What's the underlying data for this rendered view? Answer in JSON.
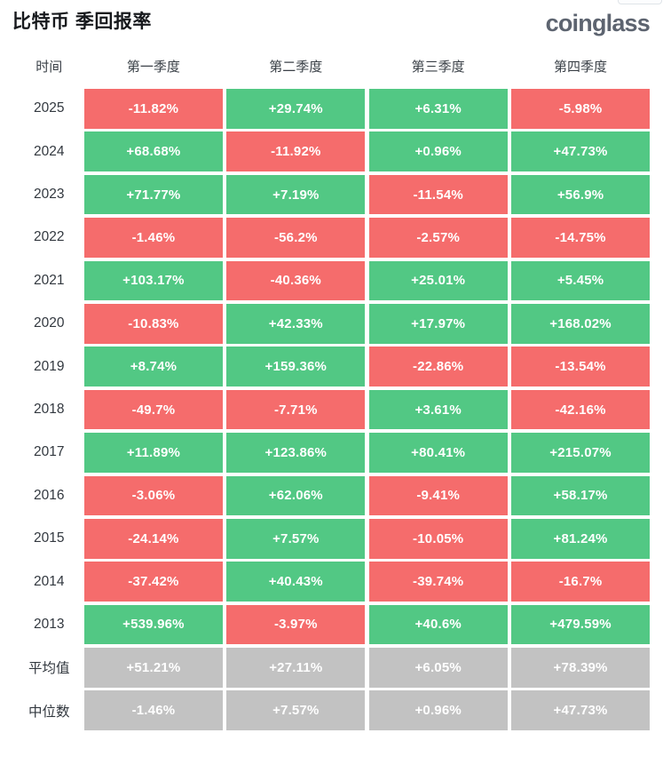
{
  "page": {
    "title": "比特币 季回报率",
    "logo": "coinglass"
  },
  "colors": {
    "positive": "#52c884",
    "negative": "#f56c6c",
    "neutral": "#c2c2c2"
  },
  "table": {
    "columns": [
      "时间",
      "第一季度",
      "第二季度",
      "第三季度",
      "第四季度"
    ],
    "rows": [
      {
        "label": "2025",
        "cells": [
          {
            "v": "-11.82%",
            "tone": "neg"
          },
          {
            "v": "+29.74%",
            "tone": "pos"
          },
          {
            "v": "+6.31%",
            "tone": "pos"
          },
          {
            "v": "-5.98%",
            "tone": "neg"
          }
        ]
      },
      {
        "label": "2024",
        "cells": [
          {
            "v": "+68.68%",
            "tone": "pos"
          },
          {
            "v": "-11.92%",
            "tone": "neg"
          },
          {
            "v": "+0.96%",
            "tone": "pos"
          },
          {
            "v": "+47.73%",
            "tone": "pos"
          }
        ]
      },
      {
        "label": "2023",
        "cells": [
          {
            "v": "+71.77%",
            "tone": "pos"
          },
          {
            "v": "+7.19%",
            "tone": "pos"
          },
          {
            "v": "-11.54%",
            "tone": "neg"
          },
          {
            "v": "+56.9%",
            "tone": "pos"
          }
        ]
      },
      {
        "label": "2022",
        "cells": [
          {
            "v": "-1.46%",
            "tone": "neg"
          },
          {
            "v": "-56.2%",
            "tone": "neg"
          },
          {
            "v": "-2.57%",
            "tone": "neg"
          },
          {
            "v": "-14.75%",
            "tone": "neg"
          }
        ]
      },
      {
        "label": "2021",
        "cells": [
          {
            "v": "+103.17%",
            "tone": "pos"
          },
          {
            "v": "-40.36%",
            "tone": "neg"
          },
          {
            "v": "+25.01%",
            "tone": "pos"
          },
          {
            "v": "+5.45%",
            "tone": "pos"
          }
        ]
      },
      {
        "label": "2020",
        "cells": [
          {
            "v": "-10.83%",
            "tone": "neg"
          },
          {
            "v": "+42.33%",
            "tone": "pos"
          },
          {
            "v": "+17.97%",
            "tone": "pos"
          },
          {
            "v": "+168.02%",
            "tone": "pos"
          }
        ]
      },
      {
        "label": "2019",
        "cells": [
          {
            "v": "+8.74%",
            "tone": "pos"
          },
          {
            "v": "+159.36%",
            "tone": "pos"
          },
          {
            "v": "-22.86%",
            "tone": "neg"
          },
          {
            "v": "-13.54%",
            "tone": "neg"
          }
        ]
      },
      {
        "label": "2018",
        "cells": [
          {
            "v": "-49.7%",
            "tone": "neg"
          },
          {
            "v": "-7.71%",
            "tone": "neg"
          },
          {
            "v": "+3.61%",
            "tone": "pos"
          },
          {
            "v": "-42.16%",
            "tone": "neg"
          }
        ]
      },
      {
        "label": "2017",
        "cells": [
          {
            "v": "+11.89%",
            "tone": "pos"
          },
          {
            "v": "+123.86%",
            "tone": "pos"
          },
          {
            "v": "+80.41%",
            "tone": "pos"
          },
          {
            "v": "+215.07%",
            "tone": "pos"
          }
        ]
      },
      {
        "label": "2016",
        "cells": [
          {
            "v": "-3.06%",
            "tone": "neg"
          },
          {
            "v": "+62.06%",
            "tone": "pos"
          },
          {
            "v": "-9.41%",
            "tone": "neg"
          },
          {
            "v": "+58.17%",
            "tone": "pos"
          }
        ]
      },
      {
        "label": "2015",
        "cells": [
          {
            "v": "-24.14%",
            "tone": "neg"
          },
          {
            "v": "+7.57%",
            "tone": "pos"
          },
          {
            "v": "-10.05%",
            "tone": "neg"
          },
          {
            "v": "+81.24%",
            "tone": "pos"
          }
        ]
      },
      {
        "label": "2014",
        "cells": [
          {
            "v": "-37.42%",
            "tone": "neg"
          },
          {
            "v": "+40.43%",
            "tone": "pos"
          },
          {
            "v": "-39.74%",
            "tone": "neg"
          },
          {
            "v": "-16.7%",
            "tone": "neg"
          }
        ]
      },
      {
        "label": "2013",
        "cells": [
          {
            "v": "+539.96%",
            "tone": "pos"
          },
          {
            "v": "-3.97%",
            "tone": "neg"
          },
          {
            "v": "+40.6%",
            "tone": "pos"
          },
          {
            "v": "+479.59%",
            "tone": "pos"
          }
        ]
      },
      {
        "label": "平均值",
        "cells": [
          {
            "v": "+51.21%",
            "tone": "neu"
          },
          {
            "v": "+27.11%",
            "tone": "neu"
          },
          {
            "v": "+6.05%",
            "tone": "neu"
          },
          {
            "v": "+78.39%",
            "tone": "neu"
          }
        ]
      },
      {
        "label": "中位数",
        "cells": [
          {
            "v": "-1.46%",
            "tone": "neu"
          },
          {
            "v": "+7.57%",
            "tone": "neu"
          },
          {
            "v": "+0.96%",
            "tone": "neu"
          },
          {
            "v": "+47.73%",
            "tone": "neu"
          }
        ]
      }
    ]
  },
  "chart_data": {
    "type": "table",
    "title": "比特币 季回报率",
    "columns": [
      "时间",
      "第一季度",
      "第二季度",
      "第三季度",
      "第四季度"
    ],
    "rows": [
      {
        "label": "2025",
        "values_pct": [
          -11.82,
          29.74,
          6.31,
          -5.98
        ]
      },
      {
        "label": "2024",
        "values_pct": [
          68.68,
          -11.92,
          0.96,
          47.73
        ]
      },
      {
        "label": "2023",
        "values_pct": [
          71.77,
          7.19,
          -11.54,
          56.9
        ]
      },
      {
        "label": "2022",
        "values_pct": [
          -1.46,
          -56.2,
          -2.57,
          -14.75
        ]
      },
      {
        "label": "2021",
        "values_pct": [
          103.17,
          -40.36,
          25.01,
          5.45
        ]
      },
      {
        "label": "2020",
        "values_pct": [
          -10.83,
          42.33,
          17.97,
          168.02
        ]
      },
      {
        "label": "2019",
        "values_pct": [
          8.74,
          159.36,
          -22.86,
          -13.54
        ]
      },
      {
        "label": "2018",
        "values_pct": [
          -49.7,
          -7.71,
          3.61,
          -42.16
        ]
      },
      {
        "label": "2017",
        "values_pct": [
          11.89,
          123.86,
          80.41,
          215.07
        ]
      },
      {
        "label": "2016",
        "values_pct": [
          -3.06,
          62.06,
          -9.41,
          58.17
        ]
      },
      {
        "label": "2015",
        "values_pct": [
          -24.14,
          7.57,
          -10.05,
          81.24
        ]
      },
      {
        "label": "2014",
        "values_pct": [
          -37.42,
          40.43,
          -39.74,
          -16.7
        ]
      },
      {
        "label": "2013",
        "values_pct": [
          539.96,
          -3.97,
          40.6,
          479.59
        ]
      },
      {
        "label": "平均值",
        "values_pct": [
          51.21,
          27.11,
          6.05,
          78.39
        ]
      },
      {
        "label": "中位数",
        "values_pct": [
          -1.46,
          7.57,
          0.96,
          47.73
        ]
      }
    ],
    "cell_color_rule": "year rows: positive=green #52c884, negative=red #f56c6c; summary rows (平均值/中位数): gray #c2c2c2",
    "legend_position": "none",
    "grid": false
  }
}
